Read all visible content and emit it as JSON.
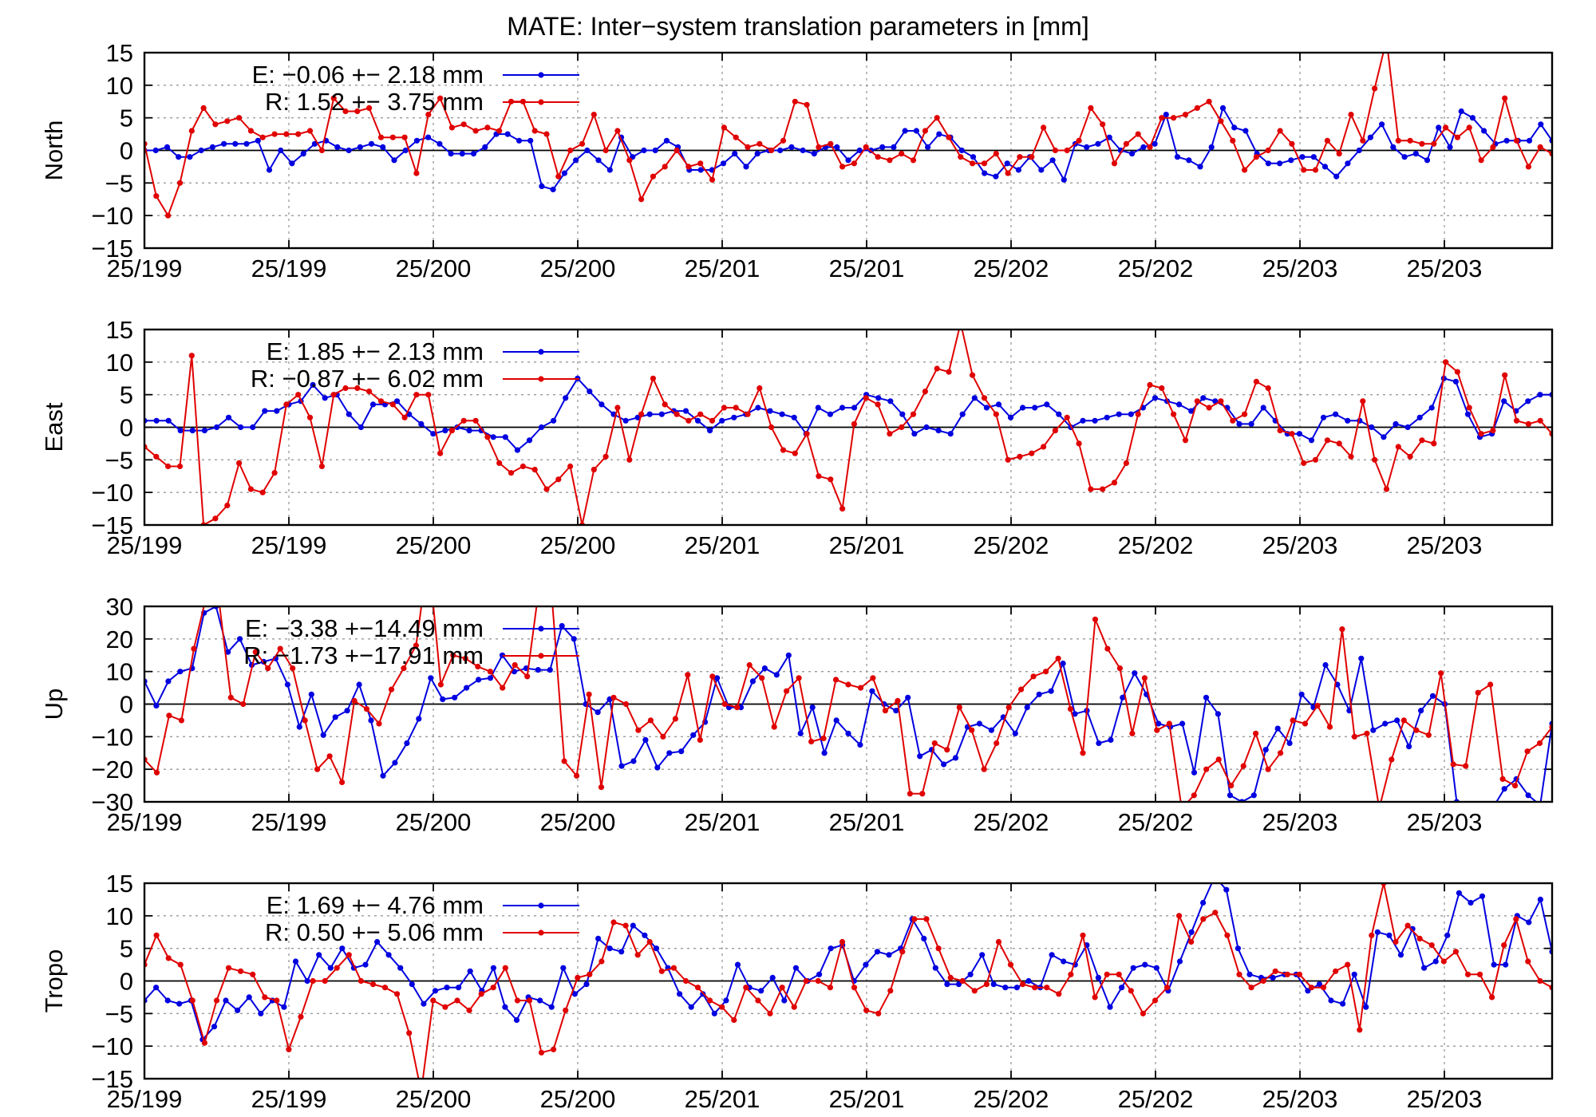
{
  "title": "MATE: Inter−system translation parameters in [mm]",
  "colors": {
    "E": "#0000e0",
    "R": "#e00000",
    "axis": "#000000",
    "grid": "#9a9a9a"
  },
  "chart_data": [
    {
      "type": "line",
      "ylabel": "North",
      "ylim": [
        -15,
        15
      ],
      "yticks": [
        "15",
        "10",
        "5",
        "0",
        "−5",
        "−10",
        "−15"
      ],
      "xticks": [
        "25/199",
        "25/199",
        "25/200",
        "25/200",
        "25/201",
        "25/201",
        "25/202",
        "25/202",
        "25/203",
        "25/203"
      ],
      "grid": true,
      "legend_position": "top-left",
      "series": [
        {
          "name": "E",
          "legend": "E:  −0.06 +− 2.18 mm",
          "color": "#0000e0",
          "values": [
            0,
            0,
            0.5,
            -1,
            -1,
            0,
            0.5,
            1,
            1,
            1,
            1.5,
            -3,
            0,
            -2,
            -0.5,
            1,
            1.5,
            0.5,
            0,
            0.5,
            1,
            0.5,
            -1.5,
            0,
            1.5,
            2,
            1,
            -0.5,
            -0.5,
            -0.5,
            0.5,
            2.5,
            2.5,
            1.5,
            1.5,
            -5.5,
            -6,
            -3.5,
            -1.5,
            0,
            -1.5,
            -3,
            2,
            -1,
            0,
            0,
            1.5,
            0.5,
            -3,
            -3,
            -3,
            -2,
            -0.5,
            -2.5,
            -0.5,
            0,
            0,
            0.5,
            0,
            -0.5,
            0.5,
            0.5,
            -1.5,
            0,
            0,
            0.5,
            0.5,
            3,
            3,
            0.5,
            2.5,
            2,
            0,
            -1,
            -3.5,
            -4,
            -2,
            -3,
            -1,
            -3,
            -1.5,
            -4.5,
            1,
            0.5,
            1,
            2,
            0,
            -0.5,
            0.5,
            1,
            5.5,
            -1,
            -1.5,
            -2.5,
            0.5,
            6.5,
            3.5,
            3,
            -0.5,
            -2,
            -2,
            -1.5,
            -1,
            -1,
            -2.5,
            -4,
            -2,
            0,
            2,
            4,
            0.5,
            -1,
            -0.5,
            -1.5,
            3.5,
            0.5,
            6,
            5,
            3,
            1,
            1.5,
            1.5,
            1.5,
            4,
            1.5
          ]
        },
        {
          "name": "R",
          "legend": "R:   1.52 +− 3.75 mm",
          "color": "#e00000",
          "values": [
            1,
            -7,
            -10,
            -5,
            3,
            6.5,
            4,
            4.5,
            5,
            3,
            2,
            2.5,
            2.5,
            2.5,
            3,
            0,
            8,
            6,
            6,
            6.5,
            2,
            2,
            2,
            -3.5,
            5.5,
            8,
            3.5,
            4,
            3,
            3.5,
            3,
            7.5,
            7.5,
            3,
            2.5,
            -4,
            0,
            1,
            5.5,
            0,
            3,
            -1.5,
            -7.5,
            -4,
            -2.5,
            0,
            -2.5,
            -2,
            -4.5,
            3.5,
            2,
            0.5,
            1,
            0,
            1.5,
            7.5,
            7,
            0.5,
            1,
            -2.5,
            -2,
            0.5,
            -1,
            -1.5,
            -0.5,
            -1.5,
            3,
            5,
            2,
            -1,
            -2,
            -2,
            -0.5,
            -3.5,
            -1,
            -1,
            3.5,
            0,
            0,
            1.5,
            6.5,
            4,
            -2,
            1,
            2.5,
            0.5,
            5,
            5,
            5.5,
            6.5,
            7.5,
            4.5,
            1.5,
            -3,
            -1,
            0,
            3,
            1,
            -3,
            -3,
            1.5,
            -0.5,
            5.5,
            1.5,
            9.5,
            17,
            1.5,
            1.5,
            1,
            1,
            3.5,
            2,
            3.5,
            -1.5,
            0.5,
            8,
            1.5,
            -2.5,
            0.5,
            -0.5
          ]
        }
      ]
    },
    {
      "type": "line",
      "ylabel": "East",
      "ylim": [
        -15,
        15
      ],
      "yticks": [
        "15",
        "10",
        "5",
        "0",
        "−5",
        "−10",
        "−15"
      ],
      "xticks": [
        "25/199",
        "25/199",
        "25/200",
        "25/200",
        "25/201",
        "25/201",
        "25/202",
        "25/202",
        "25/203",
        "25/203"
      ],
      "grid": true,
      "legend_position": "top-left",
      "series": [
        {
          "name": "E",
          "legend": "E:   1.85 +− 2.13 mm",
          "color": "#0000e0",
          "values": [
            1,
            1,
            1,
            -0.5,
            -0.5,
            -0.5,
            0,
            1.5,
            0,
            0,
            2.5,
            2.5,
            3.5,
            4,
            6.5,
            4.5,
            5,
            2,
            0,
            3.5,
            3.5,
            4,
            2,
            0.5,
            -1,
            -0.5,
            0,
            -0.5,
            -0.5,
            -1.5,
            -1.5,
            -3.5,
            -2,
            0,
            1,
            4.5,
            7.5,
            5.5,
            3.5,
            2,
            1,
            1.5,
            2,
            2,
            2.5,
            2.5,
            1,
            -0.5,
            1,
            1.5,
            2,
            3,
            2.5,
            2,
            1.5,
            -1,
            3,
            2,
            3,
            3,
            5,
            4.5,
            4,
            2,
            -1,
            0,
            -0.5,
            -1,
            2,
            4.5,
            3,
            3.5,
            1.5,
            3,
            3,
            3.5,
            2,
            0,
            1,
            1,
            1.5,
            2,
            2,
            3,
            4.5,
            4,
            3.5,
            2.5,
            4.5,
            4,
            3,
            0.5,
            0.5,
            3,
            1,
            -1,
            -1,
            -2,
            1.5,
            2,
            1,
            1,
            0,
            -1.5,
            0.5,
            0,
            1.5,
            3,
            7.5,
            7,
            2,
            -1.5,
            -1,
            4,
            2.5,
            4,
            5,
            5
          ]
        },
        {
          "name": "R",
          "legend": "R:  −0.87 +− 6.02 mm",
          "color": "#e00000",
          "values": [
            -3,
            -4.5,
            -6,
            -6,
            11,
            -15,
            -14,
            -12,
            -5.5,
            -9.5,
            -10,
            -7,
            3.5,
            5,
            1.5,
            -6,
            5,
            6,
            6,
            5.5,
            4,
            3.5,
            1.5,
            5,
            5,
            -4,
            -0.5,
            1,
            1,
            -1.5,
            -5.5,
            -7,
            -6,
            -6.5,
            -9.5,
            -8,
            -6,
            -15,
            -6.5,
            -4.5,
            3,
            -5,
            2,
            7.5,
            3.5,
            2,
            1,
            2,
            1,
            3,
            3,
            2,
            6,
            0,
            -3.5,
            -4,
            -1,
            -7.5,
            -8,
            -12.5,
            0.5,
            4.5,
            3.5,
            -1,
            0,
            2,
            5.5,
            9,
            8.5,
            16,
            8,
            4.5,
            2,
            -5,
            -4.5,
            -4,
            -3,
            -0.5,
            1.5,
            -2.5,
            -9.5,
            -9.5,
            -8.5,
            -5.5,
            2,
            6.5,
            6,
            2,
            -2,
            4,
            3,
            4,
            1,
            2,
            7,
            6,
            -0.5,
            -1,
            -5.5,
            -5,
            -2,
            -2.5,
            -4.5,
            4,
            -5,
            -9.5,
            -3,
            -4.5,
            -2,
            -2.5,
            10,
            8.5,
            3,
            -1,
            -0.5,
            8,
            1,
            0.5,
            1,
            -1
          ]
        }
      ]
    },
    {
      "type": "line",
      "ylabel": "Up",
      "ylim": [
        -30,
        30
      ],
      "yticks": [
        "30",
        "20",
        "10",
        "0",
        "−10",
        "−20",
        "−30"
      ],
      "xticks": [
        "25/199",
        "25/199",
        "25/200",
        "25/200",
        "25/201",
        "25/201",
        "25/202",
        "25/202",
        "25/203",
        "25/203"
      ],
      "grid": true,
      "legend_position": "top-left",
      "series": [
        {
          "name": "E",
          "legend": "E:  −3.38 +−14.49 mm",
          "color": "#0000e0",
          "values": [
            7,
            -0.5,
            7,
            10,
            11,
            28,
            30,
            16,
            20,
            12,
            13,
            14,
            6,
            -7,
            3,
            -9.5,
            -4,
            -2,
            6,
            -5,
            -22,
            -18,
            -12,
            -4.5,
            8,
            1.5,
            2,
            5,
            7.5,
            8,
            15,
            10,
            11,
            10.5,
            10.5,
            24,
            20,
            0,
            -2.5,
            1.5,
            -19,
            -17.5,
            -11,
            -19.5,
            -15,
            -14.5,
            -9.5,
            -5.5,
            8,
            -1,
            -1,
            7,
            11,
            9,
            15,
            -9,
            -1,
            -15,
            -5,
            -9,
            -12.5,
            4,
            0,
            -2,
            2,
            -16,
            -14,
            -18.5,
            -16.5,
            -7,
            -6,
            -8,
            -4,
            -9,
            -1,
            3,
            4,
            12.5,
            -3,
            -2,
            -12,
            -11,
            2,
            9.5,
            3,
            -6,
            -7,
            -6,
            -21,
            2,
            -3,
            -28,
            -30,
            -28,
            -14,
            -7.5,
            -12,
            3,
            -1,
            12,
            6,
            -2,
            14,
            -8,
            -6,
            -5,
            -13,
            -2,
            2.5,
            0,
            -30,
            -32,
            -32,
            -32,
            -26,
            -23,
            -28,
            -31,
            -6
          ]
        },
        {
          "name": "R",
          "legend": "R:  −1.73 +−17.91 mm",
          "color": "#e00000",
          "values": [
            -17,
            -21,
            -3.5,
            -5,
            17,
            33,
            33,
            2,
            0,
            16,
            11,
            17,
            11,
            -5,
            -20,
            -16,
            -24,
            1,
            -1.5,
            -6,
            4.5,
            11,
            18,
            46,
            6,
            15,
            14,
            11.5,
            10,
            5,
            12,
            8.5,
            37,
            33,
            -17.5,
            -22,
            3,
            -25.5,
            2,
            0,
            -8,
            -5,
            -10,
            -4.5,
            9,
            -11,
            8.5,
            0,
            -1,
            12,
            8,
            -7,
            4,
            8,
            -11.5,
            -10.5,
            7.5,
            6,
            5,
            8,
            -2,
            1,
            -27.5,
            -27.5,
            -12,
            -14,
            -1,
            -8,
            -20,
            -12,
            -1,
            4.5,
            8.5,
            10,
            14,
            -1.5,
            -15,
            26,
            17,
            11,
            -9,
            8,
            -8,
            -6,
            -32,
            -28,
            -20,
            -17,
            -25,
            -19,
            -9,
            -20,
            -15,
            -5,
            -6,
            -0.5,
            -7,
            23,
            -10,
            -9,
            -32,
            -17,
            -5,
            -8,
            -9.5,
            9.5,
            -18.5,
            -19,
            3.5,
            6,
            -23,
            -25,
            -14.5,
            -12,
            -7
          ]
        }
      ]
    },
    {
      "type": "line",
      "ylabel": "Tropo",
      "ylim": [
        -15,
        15
      ],
      "yticks": [
        "15",
        "10",
        "5",
        "0",
        "−5",
        "−10",
        "−15"
      ],
      "xticks": [
        "25/199",
        "25/199",
        "25/200",
        "25/200",
        "25/201",
        "25/201",
        "25/202",
        "25/202",
        "25/203",
        "25/203"
      ],
      "grid": true,
      "legend_position": "top-left",
      "series": [
        {
          "name": "E",
          "legend": "E:   1.69 +− 4.76 mm",
          "color": "#0000e0",
          "values": [
            -3,
            -1,
            -3,
            -3.5,
            -3,
            -9,
            -7,
            -3,
            -4.5,
            -2.5,
            -5,
            -3,
            -4,
            3,
            0,
            4,
            2,
            5,
            2,
            2.5,
            6,
            4,
            2,
            -0.5,
            -3.5,
            -1.5,
            -1,
            -1,
            1.5,
            -1.5,
            2,
            -4,
            -6,
            -2.5,
            -3,
            -4,
            2,
            -2,
            -0.5,
            6.5,
            5,
            4.5,
            8.5,
            7,
            5,
            2,
            -2,
            -4,
            -2,
            -5,
            -3,
            2.5,
            -1,
            -1.5,
            0.5,
            -3,
            2,
            0,
            1,
            5,
            5.5,
            0,
            2.5,
            4.5,
            4,
            5,
            9.5,
            6.5,
            2,
            -0.5,
            -0.5,
            1,
            4,
            -0.5,
            -1,
            -1,
            0,
            -1,
            4,
            3,
            2.5,
            5.5,
            0.5,
            -4,
            -1,
            2,
            2.5,
            2,
            -1.5,
            3,
            7.5,
            12,
            16,
            14,
            5,
            1,
            0.5,
            0.5,
            1,
            1,
            -1.5,
            -0.5,
            -3,
            -3.5,
            1,
            -4,
            7.5,
            7,
            4,
            8,
            2,
            3,
            7,
            13.5,
            12,
            13,
            2.5,
            2.5,
            10,
            9,
            12.5,
            4.5
          ]
        },
        {
          "name": "R",
          "legend": "R:   0.50 +− 5.06 mm",
          "color": "#e00000",
          "values": [
            2.5,
            7,
            3.5,
            2.5,
            -3,
            -9.5,
            -3,
            2,
            1.5,
            1,
            -2.5,
            -3,
            -10.5,
            -5.5,
            0,
            0,
            2,
            4,
            0,
            -0.5,
            -1,
            -2,
            -8,
            -17,
            -3,
            -4,
            -3,
            -4.5,
            -2,
            -1,
            2,
            -3,
            -3,
            -11,
            -10.5,
            -4.5,
            0.5,
            1,
            3,
            9,
            8.5,
            4,
            6,
            1.5,
            2,
            0,
            -1,
            -3,
            -4,
            -6,
            -1,
            -3,
            -5,
            -1,
            -4,
            0,
            0,
            -1,
            6,
            -1,
            -4.5,
            -5,
            -1.5,
            4.5,
            9.5,
            9.5,
            5,
            0.5,
            0,
            -1.5,
            -0.5,
            6,
            2.5,
            -0.5,
            -1,
            -1,
            -2,
            1,
            7,
            -2.5,
            1,
            1,
            -1.5,
            -5,
            -3,
            -1,
            10,
            6,
            9.5,
            10.5,
            7,
            1,
            -1,
            0,
            1.5,
            1,
            1,
            -1,
            -1,
            1.5,
            2.5,
            -7.5,
            7,
            15,
            6,
            8.5,
            6.5,
            5.5,
            3,
            4.5,
            1,
            1,
            -2.5,
            5.5,
            9.5,
            3,
            0,
            -1
          ]
        }
      ]
    }
  ]
}
